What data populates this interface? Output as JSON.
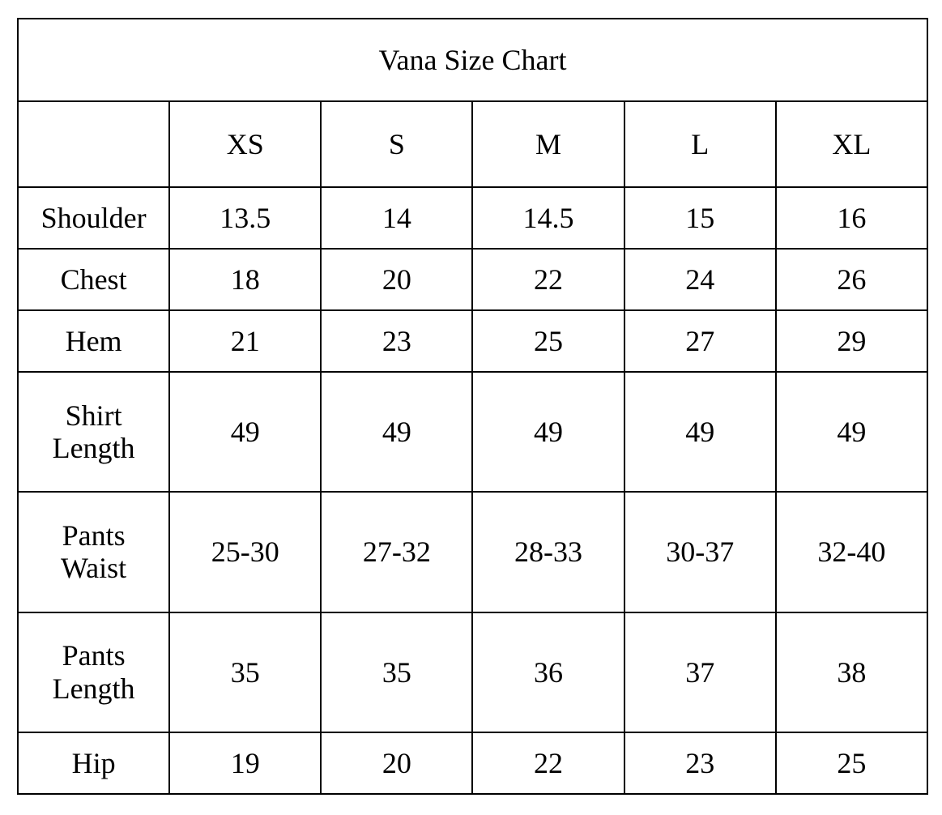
{
  "title": "Vana Size Chart",
  "columns": [
    "",
    "XS",
    "S",
    "M",
    "L",
    "XL"
  ],
  "rows": [
    {
      "label": "Shoulder",
      "values": [
        "13.5",
        "14",
        "14.5",
        "15",
        "16"
      ]
    },
    {
      "label": "Chest",
      "values": [
        "18",
        "20",
        "22",
        "24",
        "26"
      ]
    },
    {
      "label": "Hem",
      "values": [
        "21",
        "23",
        "25",
        "27",
        "29"
      ]
    },
    {
      "label": "Shirt\nLength",
      "values": [
        "49",
        "49",
        "49",
        "49",
        "49"
      ]
    },
    {
      "label": "Pants\nWaist",
      "values": [
        "25-30",
        "27-32",
        "28-33",
        "30-37",
        "32-40"
      ]
    },
    {
      "label": "Pants\nLength",
      "values": [
        "35",
        "35",
        "36",
        "37",
        "38"
      ]
    },
    {
      "label": "Hip",
      "values": [
        "19",
        "20",
        "22",
        "23",
        "25"
      ]
    }
  ]
}
